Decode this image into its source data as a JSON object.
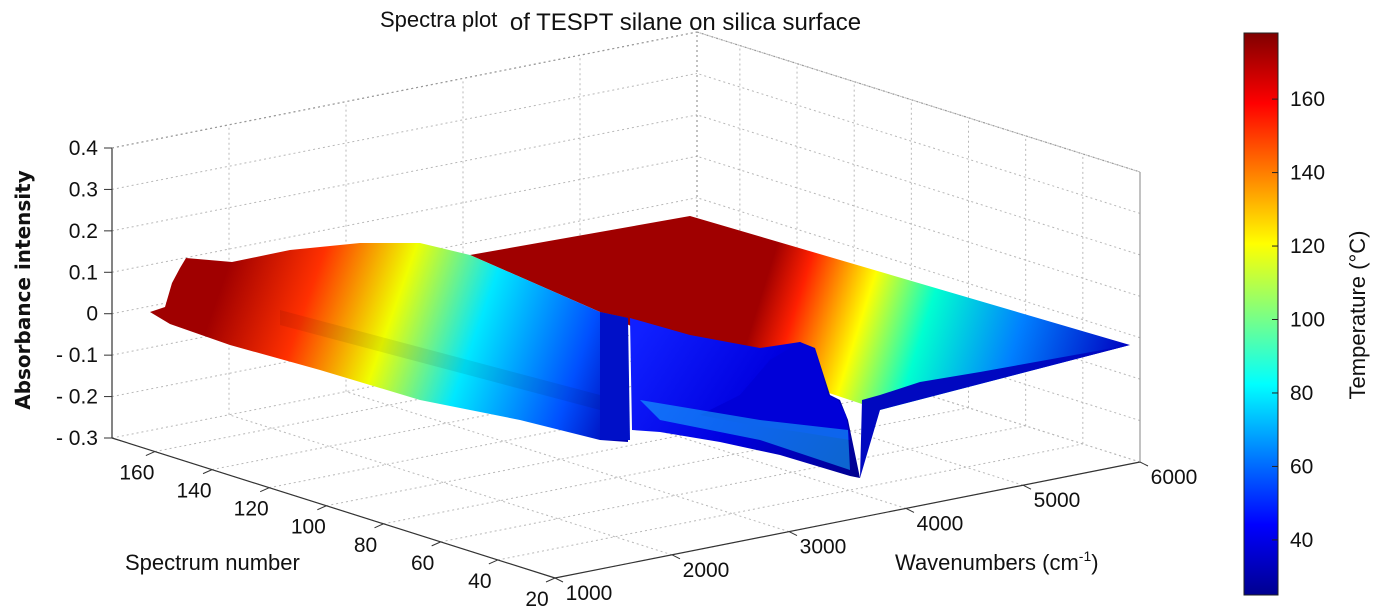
{
  "chart_data": {
    "type": "surface3d",
    "title_part1": "Spectra plot",
    "title_part2": "of TESPT silane  on silica surface",
    "zlabel": "Absorbance  intensity",
    "ylabel": "Spectrum number",
    "xlabel_main": "Wavenumbers (cm",
    "xlabel_sup": "-1",
    "xlabel_end": ")",
    "colorbar_label": "Temperature (°C)",
    "x_ticks": [
      "1000",
      "2000",
      "3000",
      "4000",
      "5000",
      "6000"
    ],
    "y_ticks": [
      "20",
      "40",
      "60",
      "80",
      "100",
      "120",
      "140",
      "160"
    ],
    "z_ticks": [
      "0.4",
      "0.3",
      "0.2",
      "0.1",
      "0",
      "- 0.1",
      "- 0.2",
      "- 0.3"
    ],
    "colorbar_ticks": [
      "40",
      "60",
      "80",
      "100",
      "120",
      "140",
      "160"
    ],
    "x_range": [
      1000,
      6000
    ],
    "y_range": [
      20,
      175
    ],
    "z_range": [
      -0.3,
      0.4
    ],
    "colorbar_range": [
      25,
      178
    ],
    "grid": true,
    "colormap": "jet",
    "spectrum_profile": {
      "wavenumbers": [
        1000,
        1100,
        1150,
        1250,
        1400,
        1600,
        1800,
        2000,
        2200,
        2400,
        2600,
        2800,
        3000,
        3050,
        3150,
        3250,
        3400,
        3500,
        3600,
        3800,
        4000,
        4500,
        5000,
        5500,
        6000
      ],
      "absorbance": [
        -0.05,
        0.1,
        0.15,
        0.15,
        0.18,
        0.18,
        0.16,
        0.12,
        0.1,
        0.08,
        0.06,
        0.03,
        -0.2,
        -0.18,
        -0.15,
        -0.12,
        0.02,
        0.04,
        -0.16,
        -0.1,
        -0.08,
        -0.06,
        -0.04,
        -0.03,
        -0.02
      ]
    }
  }
}
